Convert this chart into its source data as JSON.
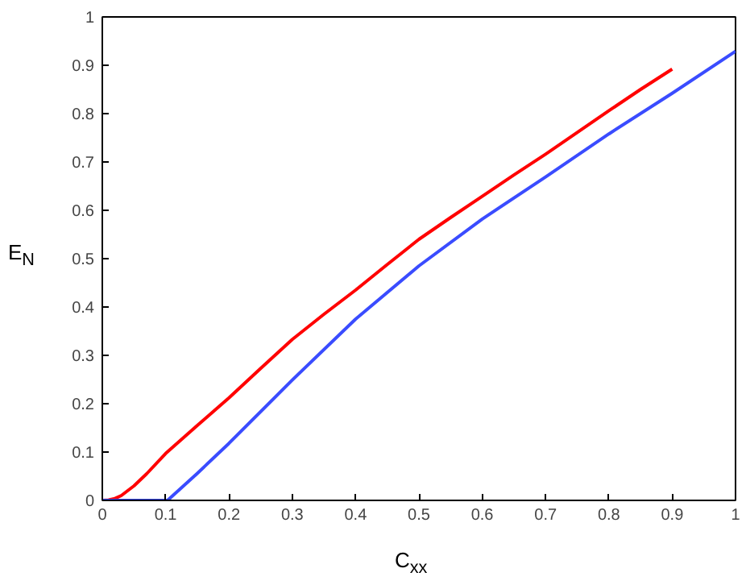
{
  "chart_data": {
    "type": "line",
    "xlabel": "C$_{xx}$",
    "ylabel": "E$_{N}$",
    "xlim": [
      0,
      1
    ],
    "ylim": [
      0,
      1
    ],
    "xticks": [
      0,
      0.1,
      0.2,
      0.3,
      0.4,
      0.5,
      0.6,
      0.7,
      0.8,
      0.9,
      1
    ],
    "yticks": [
      0,
      0.1,
      0.2,
      0.3,
      0.4,
      0.5,
      0.6,
      0.7,
      0.8,
      0.9,
      1
    ],
    "grid": false,
    "marker": "none",
    "line_style": "solid",
    "series": [
      {
        "color": "#ff0000",
        "x": [
          0,
          0.01,
          0.02,
          0.03,
          0.05,
          0.07,
          0.1,
          0.15,
          0.2,
          0.25,
          0.3,
          0.35,
          0.4,
          0.45,
          0.5,
          0.55,
          0.6,
          0.65,
          0.7,
          0.75,
          0.8,
          0.85,
          0.9
        ],
        "values": [
          0,
          0.001,
          0.004,
          0.01,
          0.03,
          0.055,
          0.097,
          0.155,
          0.212,
          0.273,
          0.333,
          0.385,
          0.435,
          0.488,
          0.54,
          0.585,
          0.629,
          0.673,
          0.716,
          0.761,
          0.806,
          0.85,
          0.892
        ]
      },
      {
        "color": "#3a4cff",
        "x": [
          0,
          0.103,
          0.15,
          0.2,
          0.3,
          0.4,
          0.5,
          0.6,
          0.7,
          0.8,
          0.9,
          1
        ],
        "values": [
          0,
          0,
          0.056,
          0.118,
          0.249,
          0.375,
          0.485,
          0.582,
          0.669,
          0.758,
          0.842,
          0.929
        ]
      }
    ]
  }
}
